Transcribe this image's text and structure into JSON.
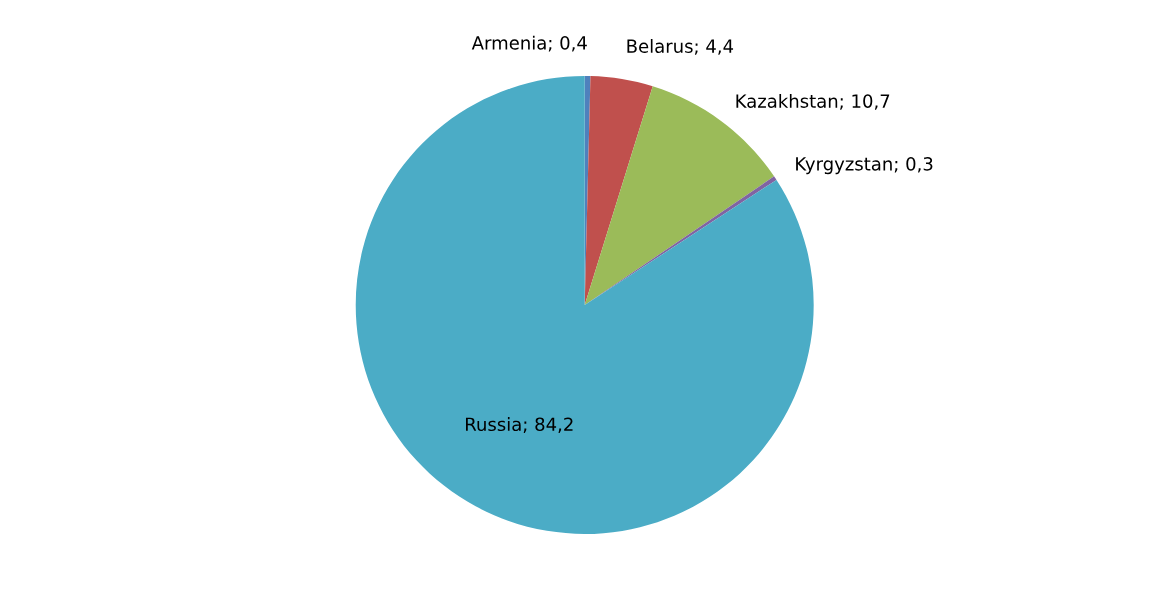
{
  "chart_data": {
    "type": "pie",
    "categories": [
      "Armenia",
      "Belarus",
      "Kazakhstan",
      "Kyrgyzstan",
      "Russia"
    ],
    "values": [
      0.4,
      4.4,
      10.7,
      0.3,
      84.2
    ],
    "value_labels": [
      "0,4",
      "4,4",
      "10,7",
      "0,3",
      "84,2"
    ],
    "colors": [
      "#4f81bd",
      "#c0504d",
      "#9bbb59",
      "#8064a2",
      "#4bacc6"
    ],
    "legend": false
  }
}
